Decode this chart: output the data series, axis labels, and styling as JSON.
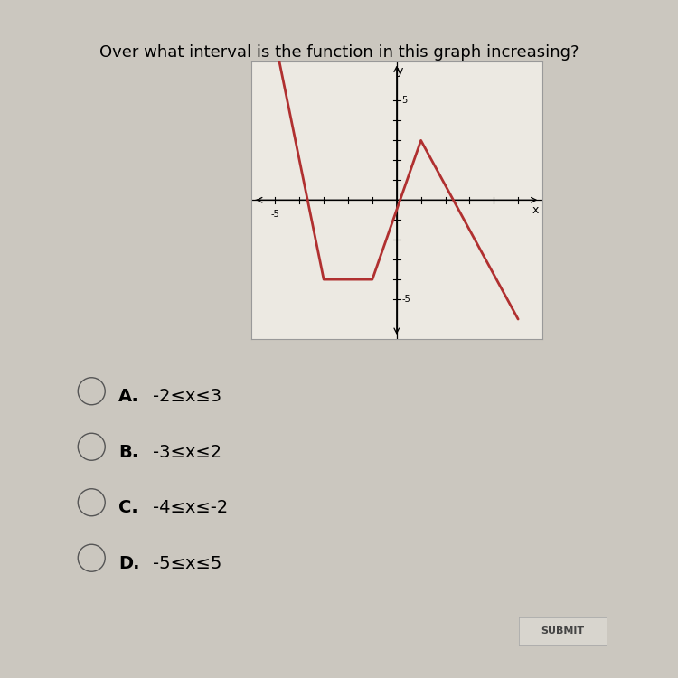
{
  "title": "Over what interval is the function in this graph increasing?",
  "graph_points": [
    [
      -5,
      8
    ],
    [
      -3,
      -4
    ],
    [
      -1,
      -4
    ],
    [
      1,
      3
    ],
    [
      5,
      -6
    ]
  ],
  "xlim": [
    -6,
    6
  ],
  "ylim": [
    -7,
    7
  ],
  "xtick_label": -5,
  "ytick_labels": [
    5,
    -5
  ],
  "line_color": "#b03030",
  "line_width": 2.0,
  "bg_color": "#cbc7bf",
  "graph_bg": "#ece9e2",
  "graph_border": "#999999",
  "choices": [
    {
      "label": "A.",
      "text": "-2≤x≤3"
    },
    {
      "label": "B.",
      "text": "-3≤x≤2"
    },
    {
      "label": "C.",
      "text": "-4≤x≤-2"
    },
    {
      "label": "D.",
      "text": "-5≤x≤5"
    }
  ],
  "choice_fontsize": 14,
  "title_fontsize": 13
}
